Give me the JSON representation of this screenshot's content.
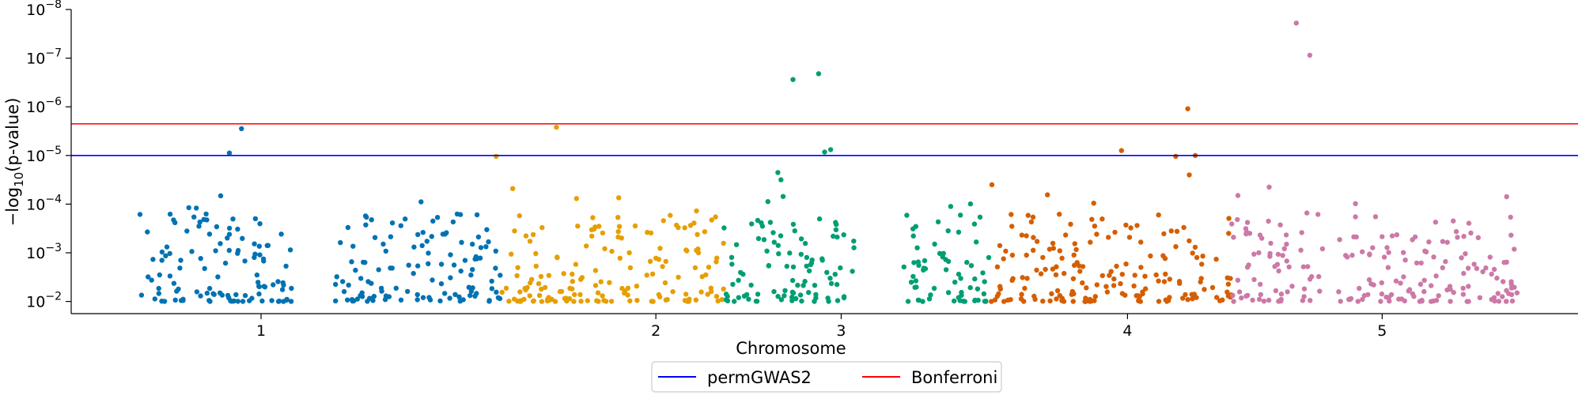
{
  "chart_data": {
    "type": "scatter",
    "title": "",
    "xlabel": "Chromosome",
    "ylabel_prefix": "−log",
    "ylabel_sub": "10",
    "ylabel_suffix": "(p-value)",
    "x_range": [
      0,
      100
    ],
    "y_range_log10": [
      -1.75,
      -8.0
    ],
    "y_ticks": [
      {
        "base": "10",
        "exp": "−8",
        "log10": -8
      },
      {
        "base": "10",
        "exp": "−7",
        "log10": -7
      },
      {
        "base": "10",
        "exp": "−6",
        "log10": -6
      },
      {
        "base": "10",
        "exp": "−5",
        "log10": -5
      },
      {
        "base": "10",
        "exp": "−4",
        "log10": -4
      },
      {
        "base": "10",
        "exp": "−3",
        "log10": -3
      },
      {
        "base": "10",
        "exp": "−2",
        "log10": -2
      }
    ],
    "x_ticks": [
      {
        "label": "1",
        "x": 12.6
      },
      {
        "label": "2",
        "x": 38.8
      },
      {
        "label": "3",
        "x": 51.1
      },
      {
        "label": "4",
        "x": 70.1
      },
      {
        "label": "5",
        "x": 87.0
      }
    ],
    "chromosomes": [
      {
        "x0": 4.5,
        "x1": 15.0,
        "color": "#0072b2"
      },
      {
        "x0": 17.5,
        "x1": 28.5,
        "color": "#0072b2"
      },
      {
        "x0": 28.5,
        "x1": 43.3,
        "color": "#e69f00"
      },
      {
        "x0": 43.3,
        "x1": 52.0,
        "color": "#009e73"
      },
      {
        "x0": 54.9,
        "x1": 61.0,
        "color": "#009e73"
      },
      {
        "x0": 61.0,
        "x1": 64.5,
        "color": "#d55e00"
      },
      {
        "x0": 64.5,
        "x1": 77.0,
        "color": "#d55e00"
      },
      {
        "x0": 77.0,
        "x1": 83.1,
        "color": "#cc79a7"
      },
      {
        "x0": 84.0,
        "x1": 96.0,
        "color": "#cc79a7"
      }
    ],
    "highlights": [
      {
        "x": 10.5,
        "log10": -5.05,
        "color": "#0072b2"
      },
      {
        "x": 11.3,
        "log10": -5.55,
        "color": "#0072b2"
      },
      {
        "x": 28.2,
        "log10": -4.98,
        "color": "#e69f00"
      },
      {
        "x": 29.3,
        "log10": -4.32,
        "color": "#e69f00"
      },
      {
        "x": 32.2,
        "log10": -5.58,
        "color": "#e69f00"
      },
      {
        "x": 46.9,
        "log10": -4.65,
        "color": "#009e73"
      },
      {
        "x": 47.1,
        "log10": -4.5,
        "color": "#009e73"
      },
      {
        "x": 47.9,
        "log10": -6.56,
        "color": "#009e73"
      },
      {
        "x": 49.6,
        "log10": -6.68,
        "color": "#009e73"
      },
      {
        "x": 50.0,
        "log10": -5.07,
        "color": "#009e73"
      },
      {
        "x": 50.4,
        "log10": -5.12,
        "color": "#009e73"
      },
      {
        "x": 61.1,
        "log10": -4.4,
        "color": "#d55e00"
      },
      {
        "x": 69.7,
        "log10": -5.1,
        "color": "#d55e00"
      },
      {
        "x": 73.3,
        "log10": -4.98,
        "color": "#d55e00"
      },
      {
        "x": 74.1,
        "log10": -5.96,
        "color": "#d55e00"
      },
      {
        "x": 74.2,
        "log10": -4.6,
        "color": "#d55e00"
      },
      {
        "x": 74.6,
        "log10": -5.0,
        "color": "#d55e00"
      },
      {
        "x": 81.3,
        "log10": -7.72,
        "color": "#cc79a7"
      },
      {
        "x": 82.2,
        "log10": -7.06,
        "color": "#cc79a7"
      },
      {
        "x": 79.5,
        "log10": -4.35,
        "color": "#cc79a7"
      }
    ],
    "thresholds": [
      {
        "name": "permGWAS2",
        "log10": -5.0,
        "color": "#0000ff"
      },
      {
        "name": "Bonferroni",
        "log10": -5.65,
        "color": "#ff0000"
      }
    ],
    "legend_position": "bottom-center"
  }
}
